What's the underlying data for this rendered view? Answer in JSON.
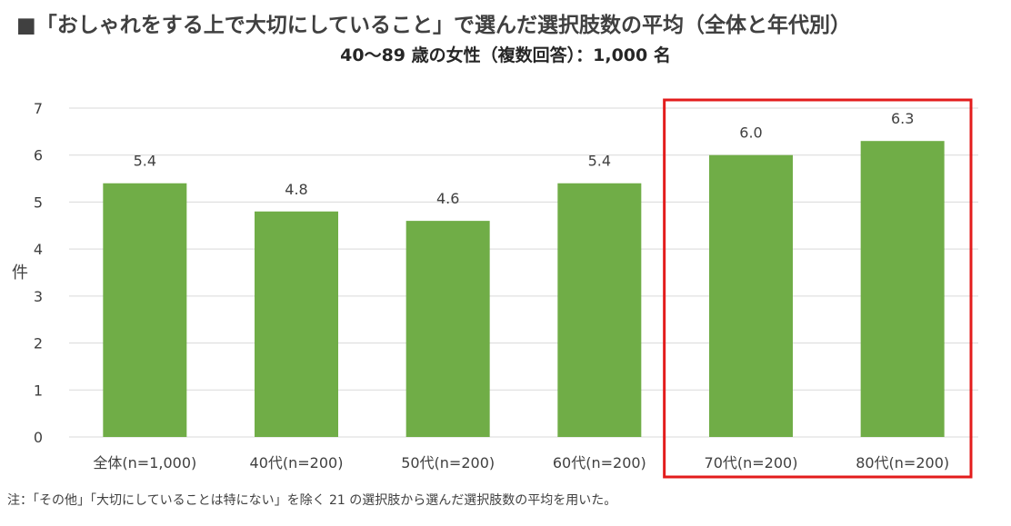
{
  "title": "■「おしゃれをする上で大切にしていること」で選んだ選択肢数の平均（全体と年代別）",
  "subtitle": "40〜89 歳の女性（複数回答）：1,000 名",
  "note": "注：「その他」「大切にしていることは特にない」を除く 21 の選択肢から選んだ選択肢数の平均を用いた。",
  "chart_data": {
    "type": "bar",
    "categories": [
      "全体(n=1,000)",
      "40代(n=200)",
      "50代(n=200)",
      "60代(n=200)",
      "70代(n=200)",
      "80代(n=200)"
    ],
    "values": [
      5.4,
      4.8,
      4.6,
      5.4,
      6.0,
      6.3
    ],
    "data_labels": [
      "5.4",
      "4.8",
      "4.6",
      "5.4",
      "6.0",
      "6.3"
    ],
    "ylabel": "件",
    "ylim": [
      0,
      7
    ],
    "yticks": [
      0,
      1,
      2,
      3,
      4,
      5,
      6,
      7
    ],
    "grid": true,
    "highlight_categories": [
      "70代(n=200)",
      "80代(n=200)"
    ],
    "colors": {
      "bar": "#70ad47",
      "grid": "#d9d9d9",
      "highlight_box": "#e31c1c",
      "text": "#404040"
    }
  }
}
